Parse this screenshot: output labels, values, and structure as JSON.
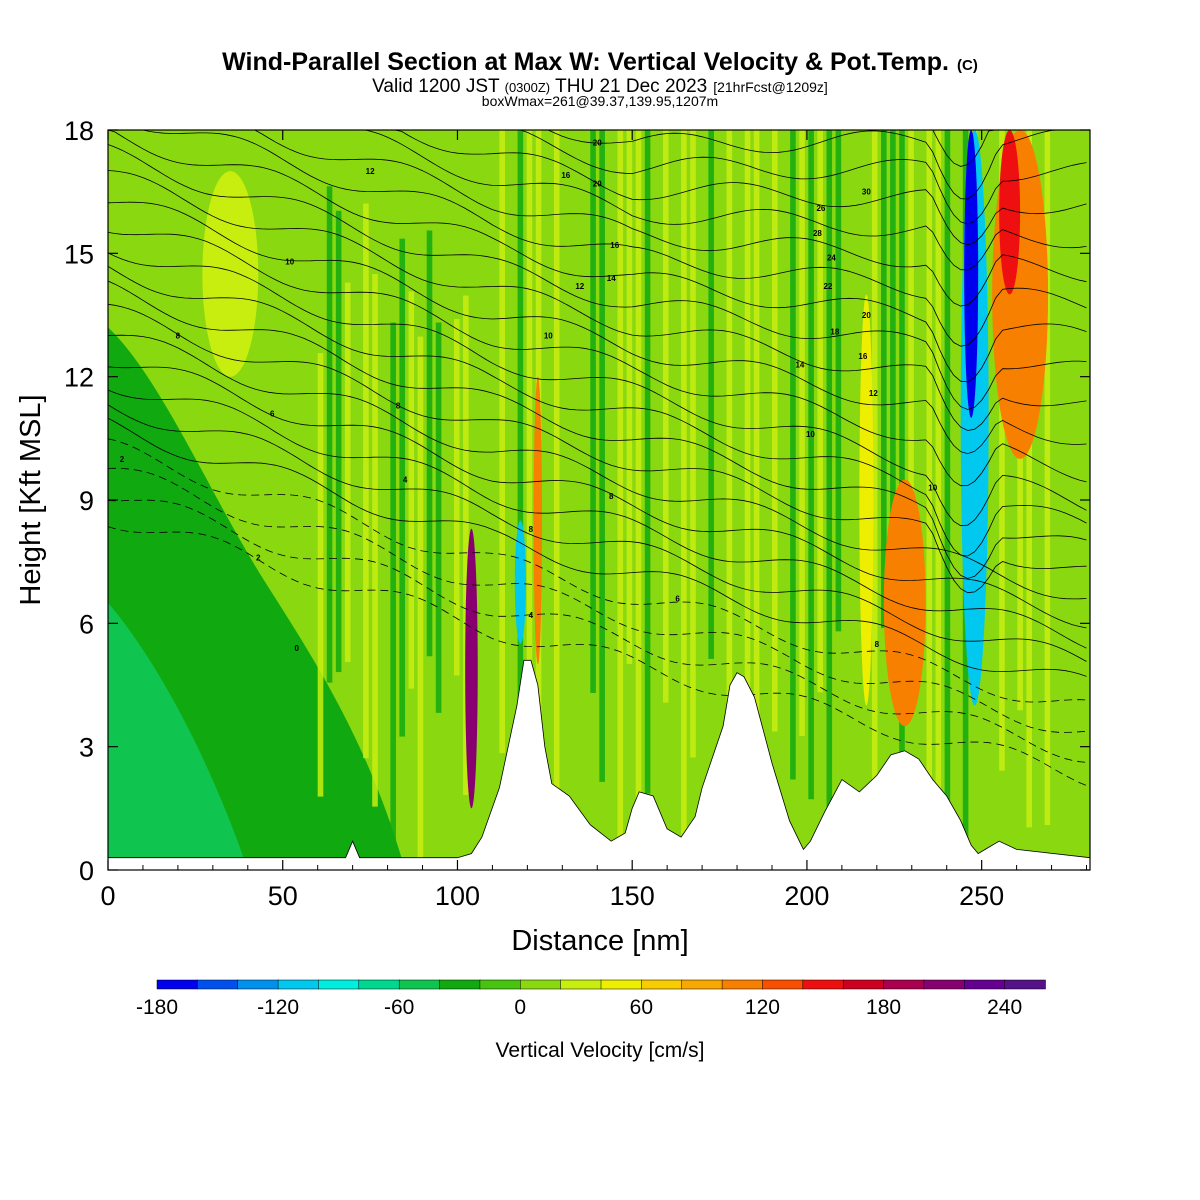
{
  "chart_data": {
    "type": "heatmap",
    "title": "Wind-Parallel Section at Max W: Vertical Velocity & Pot.Temp.",
    "title_suffix": "(C)",
    "subtitle_parts": {
      "valid": "Valid 1200 JST",
      "utc": "(0300Z)",
      "date": "THU 21 Dec 2023",
      "fcst": "[21hrFcst@1209z]"
    },
    "subtitle2": "boxWmax=261@39.37,139.95,1207m",
    "xlabel": "Distance [nm]",
    "ylabel": "Height [Kft MSL]",
    "xlim": [
      0,
      281
    ],
    "ylim": [
      0,
      18
    ],
    "x_ticks": [
      0,
      50,
      100,
      150,
      200,
      250
    ],
    "y_ticks": [
      0,
      3,
      6,
      9,
      12,
      15,
      18
    ],
    "colorbar": {
      "label": "Vertical Velocity [cm/s]",
      "min": -180,
      "max": 260,
      "step": 20,
      "tick_labels": [
        "-180",
        "-120",
        "-60",
        "0",
        "60",
        "120",
        "180",
        "240"
      ],
      "tick_values": [
        -180,
        -120,
        -60,
        0,
        60,
        120,
        180,
        240
      ],
      "colors": [
        "#0000ee",
        "#0050ee",
        "#0090ee",
        "#00c8ee",
        "#00eedd",
        "#00d890",
        "#10c450",
        "#10aa10",
        "#48c410",
        "#8ad810",
        "#c8ee10",
        "#eeee00",
        "#f8cc00",
        "#f8a800",
        "#f88000",
        "#f85000",
        "#ee1010",
        "#cc0020",
        "#aa0050",
        "#880070",
        "#660090",
        "#551188"
      ]
    },
    "terrain_profile": {
      "x": [
        0,
        68,
        70,
        72,
        100,
        104,
        107,
        112,
        117,
        119,
        121,
        123,
        125,
        127,
        132,
        138,
        144,
        148,
        150,
        152,
        156,
        160,
        164,
        168,
        170,
        176,
        178,
        180,
        182,
        185,
        190,
        195,
        199,
        201,
        205,
        210,
        215,
        220,
        224,
        228,
        232,
        236,
        240,
        244,
        247,
        249,
        251,
        255,
        260,
        281
      ],
      "h": [
        0.3,
        0.3,
        0.7,
        0.3,
        0.3,
        0.4,
        0.8,
        2.0,
        4.0,
        5.1,
        5.1,
        4.5,
        3.0,
        2.1,
        1.8,
        1.1,
        0.7,
        0.9,
        1.5,
        1.9,
        1.8,
        1.0,
        0.8,
        1.3,
        2.0,
        3.5,
        4.5,
        4.8,
        4.7,
        4.2,
        2.6,
        1.2,
        0.5,
        0.7,
        1.4,
        2.2,
        1.9,
        2.3,
        2.8,
        2.9,
        2.7,
        2.2,
        1.8,
        1.2,
        0.6,
        0.4,
        0.5,
        0.7,
        0.5,
        0.3
      ]
    },
    "w_features": [
      {
        "x": 104,
        "w": 1.8,
        "bottom": 1.5,
        "top": 8.3,
        "value": 200
      },
      {
        "x": 118,
        "w": 1.6,
        "bottom": 5.5,
        "top": 8.5,
        "value": -120
      },
      {
        "x": 123,
        "w": 1.2,
        "bottom": 5.0,
        "top": 12.0,
        "value": 110
      },
      {
        "x": 35,
        "w": 8,
        "bottom": 12.0,
        "top": 17.0,
        "value": 30
      },
      {
        "x": 228,
        "w": 6,
        "bottom": 3.5,
        "top": 9.5,
        "value": 110
      },
      {
        "x": 217,
        "w": 2,
        "bottom": 4.0,
        "top": 14.0,
        "value": 50
      },
      {
        "x": 248,
        "w": 4,
        "bottom": 4.0,
        "top": 18.0,
        "value": -120
      },
      {
        "x": 247,
        "w": 2,
        "bottom": 11.0,
        "top": 18.0,
        "value": -180
      },
      {
        "x": 261,
        "w": 8,
        "bottom": 10.0,
        "top": 18.0,
        "value": 100
      },
      {
        "x": 258,
        "w": 3,
        "bottom": 14.0,
        "top": 18.0,
        "value": 140
      }
    ],
    "isentrope_labels": [
      {
        "x": 75,
        "y": 17.0,
        "t": "12"
      },
      {
        "x": 52,
        "y": 14.8,
        "t": "10"
      },
      {
        "x": 20,
        "y": 13.0,
        "t": "8"
      },
      {
        "x": 47,
        "y": 11.1,
        "t": "6"
      },
      {
        "x": 83,
        "y": 11.3,
        "t": "8"
      },
      {
        "x": 4,
        "y": 10.0,
        "t": "2"
      },
      {
        "x": 85,
        "y": 9.5,
        "t": "4"
      },
      {
        "x": 43,
        "y": 7.6,
        "t": "2"
      },
      {
        "x": 54,
        "y": 5.4,
        "t": "0"
      },
      {
        "x": 126,
        "y": 13.0,
        "t": "10"
      },
      {
        "x": 135,
        "y": 14.2,
        "t": "12"
      },
      {
        "x": 131,
        "y": 16.9,
        "t": "16"
      },
      {
        "x": 140,
        "y": 17.7,
        "t": "20"
      },
      {
        "x": 140,
        "y": 16.7,
        "t": "20"
      },
      {
        "x": 145,
        "y": 15.2,
        "t": "16"
      },
      {
        "x": 144,
        "y": 14.4,
        "t": "14"
      },
      {
        "x": 144,
        "y": 9.1,
        "t": "8"
      },
      {
        "x": 121,
        "y": 8.3,
        "t": "8"
      },
      {
        "x": 121,
        "y": 6.2,
        "t": "4"
      },
      {
        "x": 163,
        "y": 6.6,
        "t": "6"
      },
      {
        "x": 204,
        "y": 16.1,
        "t": "26"
      },
      {
        "x": 203,
        "y": 15.5,
        "t": "28"
      },
      {
        "x": 207,
        "y": 14.9,
        "t": "24"
      },
      {
        "x": 206,
        "y": 14.2,
        "t": "22"
      },
      {
        "x": 217,
        "y": 16.5,
        "t": "30"
      },
      {
        "x": 217,
        "y": 13.5,
        "t": "20"
      },
      {
        "x": 208,
        "y": 13.1,
        "t": "18"
      },
      {
        "x": 216,
        "y": 12.5,
        "t": "16"
      },
      {
        "x": 198,
        "y": 12.3,
        "t": "14"
      },
      {
        "x": 219,
        "y": 11.6,
        "t": "12"
      },
      {
        "x": 201,
        "y": 10.6,
        "t": "10"
      },
      {
        "x": 236,
        "y": 9.3,
        "t": "10"
      },
      {
        "x": 220,
        "y": 5.5,
        "t": "8"
      }
    ]
  }
}
